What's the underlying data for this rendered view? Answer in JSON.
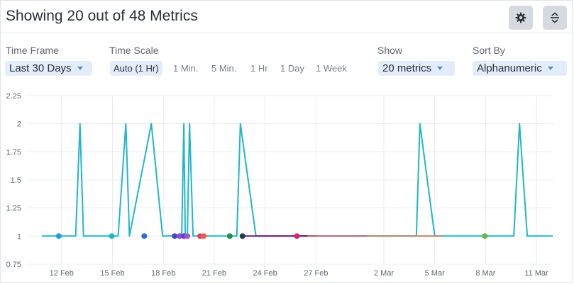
{
  "header": {
    "title": "Showing 20 out of 48 Metrics",
    "settings_icon": "gear-icon",
    "expand_icon": "expand-collapse-icon"
  },
  "controls": {
    "time_frame": {
      "label": "Time Frame",
      "value": "Last 30 Days"
    },
    "time_scale": {
      "label": "Time Scale",
      "options": [
        "Auto (1 Hr)",
        "1 Min.",
        "5 Min.",
        "1 Hr",
        "1 Day",
        "1 Week"
      ],
      "selected": "Auto (1 Hr)"
    },
    "show": {
      "label": "Show",
      "value": "20 metrics"
    },
    "sort_by": {
      "label": "Sort By",
      "value": "Alphanumeric"
    }
  },
  "colors": {
    "accent": "#4a8fe0",
    "dropdown_bg": "#e3edf9",
    "main_series": "#1fb7c9"
  },
  "chart_data": {
    "type": "line",
    "ylim": [
      0.75,
      2.25
    ],
    "yticks": [
      "0.75",
      "1",
      "1.25",
      "1.5",
      "1.75",
      "2",
      "2.25"
    ],
    "xlim": [
      "2024-02-10",
      "2024-03-12"
    ],
    "xticks": [
      "12 Feb",
      "15 Feb",
      "18 Feb",
      "21 Feb",
      "24 Feb",
      "27 Feb",
      "2 Mar",
      "5 Mar",
      "8 Mar",
      "11 Mar"
    ],
    "grid": true,
    "series": [
      {
        "color": "#1fb7c9",
        "points": [
          [
            "2024-02-10 20:00",
            1
          ],
          [
            "2024-02-11 23:00",
            1
          ],
          [
            "2024-02-12 20:00",
            1
          ],
          [
            "2024-02-13 02:00",
            2
          ],
          [
            "2024-02-13 07:00",
            1
          ],
          [
            "2024-02-14 21:00",
            1
          ],
          [
            "2024-02-15 08:00",
            1
          ],
          [
            "2024-02-15 19:00",
            2
          ],
          [
            "2024-02-16 00:00",
            1
          ],
          [
            "2024-02-17 07:00",
            2
          ],
          [
            "2024-02-17 23:00",
            1
          ],
          [
            "2024-02-18 17:00",
            1
          ],
          [
            "2024-02-19 02:00",
            1
          ],
          [
            "2024-02-19 05:00",
            2
          ],
          [
            "2024-02-19 07:00",
            1
          ],
          [
            "2024-02-19 10:00",
            1
          ],
          [
            "2024-02-19 13:00",
            2
          ],
          [
            "2024-02-19 18:00",
            1
          ],
          [
            "2024-02-21 20:00",
            1
          ],
          [
            "2024-02-22 08:00",
            1
          ],
          [
            "2024-02-22 13:00",
            2
          ],
          [
            "2024-02-23 11:00",
            1
          ],
          [
            "2024-03-03 22:00",
            1
          ],
          [
            "2024-03-04 03:00",
            2
          ],
          [
            "2024-03-05 00:00",
            1
          ],
          [
            "2024-03-09 16:00",
            1
          ],
          [
            "2024-03-10 00:00",
            2
          ],
          [
            "2024-03-10 11:00",
            1
          ],
          [
            "2024-03-11 23:00",
            1
          ]
        ]
      },
      {
        "color": "#7b1f6e",
        "points": [
          [
            "2024-02-22 13:00",
            1
          ],
          [
            "2024-02-25 14:00",
            1
          ]
        ]
      },
      {
        "color": "#5a1a6a",
        "points": [
          [
            "2024-02-25 14:00",
            1
          ],
          [
            "2024-02-27 00:00",
            1
          ]
        ]
      },
      {
        "color": "#c06a7a",
        "points": [
          [
            "2024-02-26 12:00",
            1
          ],
          [
            "2024-03-01 00:00",
            1
          ]
        ]
      },
      {
        "color": "#b8896a",
        "points": [
          [
            "2024-03-01 00:00",
            1
          ],
          [
            "2024-03-05 12:00",
            1
          ]
        ]
      }
    ],
    "markers": [
      {
        "x": "2024-02-11 20:00",
        "y": 1,
        "color": "#1e9fd8"
      },
      {
        "x": "2024-02-14 23:00",
        "y": 1,
        "color": "#1fb7c9"
      },
      {
        "x": "2024-02-16 21:00",
        "y": 1,
        "color": "#2f6ae0"
      },
      {
        "x": "2024-02-18 16:00",
        "y": 1,
        "color": "#3b4fb8"
      },
      {
        "x": "2024-02-18 23:00",
        "y": 1,
        "color": "#8a4fd0"
      },
      {
        "x": "2024-02-19 05:00",
        "y": 1,
        "color": "#6a3fc8"
      },
      {
        "x": "2024-02-19 10:00",
        "y": 1,
        "color": "#9b55d8"
      },
      {
        "x": "2024-02-20 04:00",
        "y": 1,
        "color": "#d8456a"
      },
      {
        "x": "2024-02-20 09:00",
        "y": 1,
        "color": "#ef5a4a"
      },
      {
        "x": "2024-02-21 22:00",
        "y": 1,
        "color": "#1f8f4e"
      },
      {
        "x": "2024-02-22 16:00",
        "y": 1,
        "color": "#2a3a55"
      },
      {
        "x": "2024-02-25 21:00",
        "y": 1,
        "color": "#d8266a"
      },
      {
        "x": "2024-03-07 23:00",
        "y": 1,
        "color": "#6ab84a"
      }
    ]
  }
}
